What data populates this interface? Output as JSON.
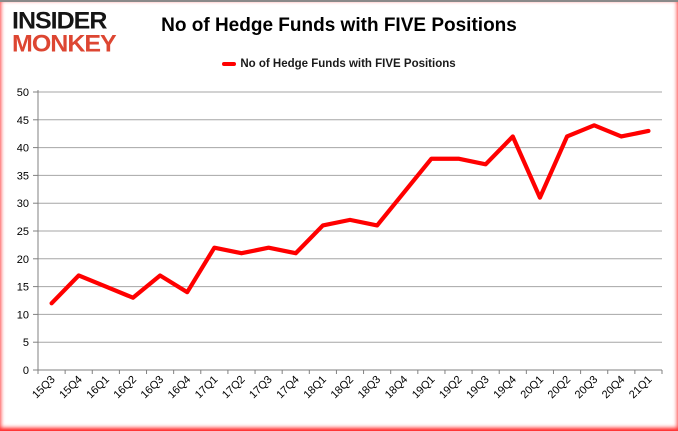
{
  "logo": {
    "line1": "INSIDER",
    "line2": "MONKEY"
  },
  "header": {
    "title": "No of Hedge Funds with FIVE Positions"
  },
  "legend": {
    "label": "No of Hedge Funds with FIVE Positions"
  },
  "colors": {
    "series_line": "#FF0000",
    "logo_accent": "#DD4632",
    "logo_text": "#151515",
    "gridline": "#A6A6A6",
    "axis": "#808080",
    "top_border": "#8A8A8A",
    "glow_border": "#FF0000"
  },
  "chart_data": {
    "type": "line",
    "title": "No of Hedge Funds with FIVE Positions",
    "series_name": "No of Hedge Funds with FIVE Positions",
    "categories": [
      "15Q3",
      "15Q4",
      "16Q1",
      "16Q2",
      "16Q3",
      "16Q4",
      "17Q1",
      "17Q2",
      "17Q3",
      "17Q4",
      "18Q1",
      "18Q2",
      "18Q3",
      "18Q4",
      "19Q1",
      "19Q2",
      "19Q3",
      "19Q4",
      "20Q1",
      "20Q2",
      "20Q3",
      "20Q4",
      "21Q1"
    ],
    "values": [
      12,
      17,
      15,
      13,
      17,
      14,
      22,
      21,
      22,
      21,
      26,
      27,
      26,
      32,
      38,
      38,
      37,
      42,
      31,
      42,
      44,
      42,
      43
    ],
    "xlabel": "",
    "ylabel": "",
    "ylim": [
      0,
      50
    ],
    "ytick_step": 5,
    "yticks": [
      0,
      5,
      10,
      15,
      20,
      25,
      30,
      35,
      40,
      45,
      50
    ],
    "grid": true,
    "legend_position": "top-center"
  }
}
